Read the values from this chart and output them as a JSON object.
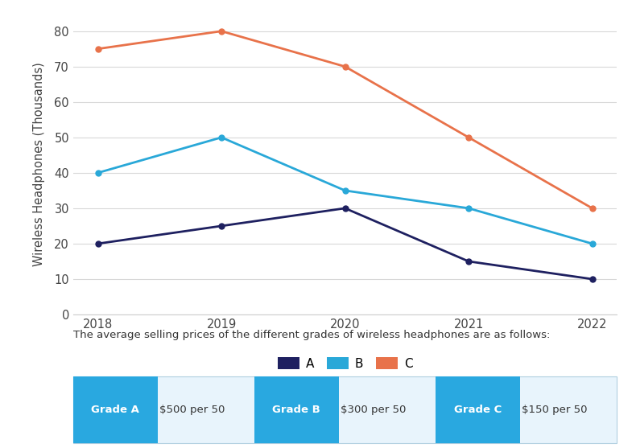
{
  "years": [
    2018,
    2019,
    2020,
    2021,
    2022
  ],
  "grade_A": [
    20,
    25,
    30,
    15,
    10
  ],
  "grade_B": [
    40,
    50,
    35,
    30,
    20
  ],
  "grade_C": [
    75,
    80,
    70,
    50,
    30
  ],
  "color_A": "#1e2060",
  "color_B": "#29a8d8",
  "color_C": "#e8724a",
  "ylabel": "Wireless Headphones (Thousands)",
  "ylim": [
    0,
    85
  ],
  "yticks": [
    0,
    10,
    20,
    30,
    40,
    50,
    60,
    70,
    80
  ],
  "bg_color": "#ffffff",
  "grid_color": "#d8d8d8",
  "info_text": "The average selling prices of the different grades of wireless headphones are as follows:",
  "grade_button_color": "#29a8e0",
  "grade_button_text_color": "#ffffff",
  "table_bg": "#e8f4fc",
  "table_border": "#b0cfe0",
  "table_data": [
    {
      "label": "Grade A",
      "value": "$500 per 50"
    },
    {
      "label": "Grade B",
      "value": "$300 per 50"
    },
    {
      "label": "Grade C",
      "value": "$150 per 50"
    }
  ],
  "legend_labels": [
    "A",
    "B",
    "C"
  ],
  "linewidth": 2.0,
  "marker": "o",
  "markersize": 5
}
